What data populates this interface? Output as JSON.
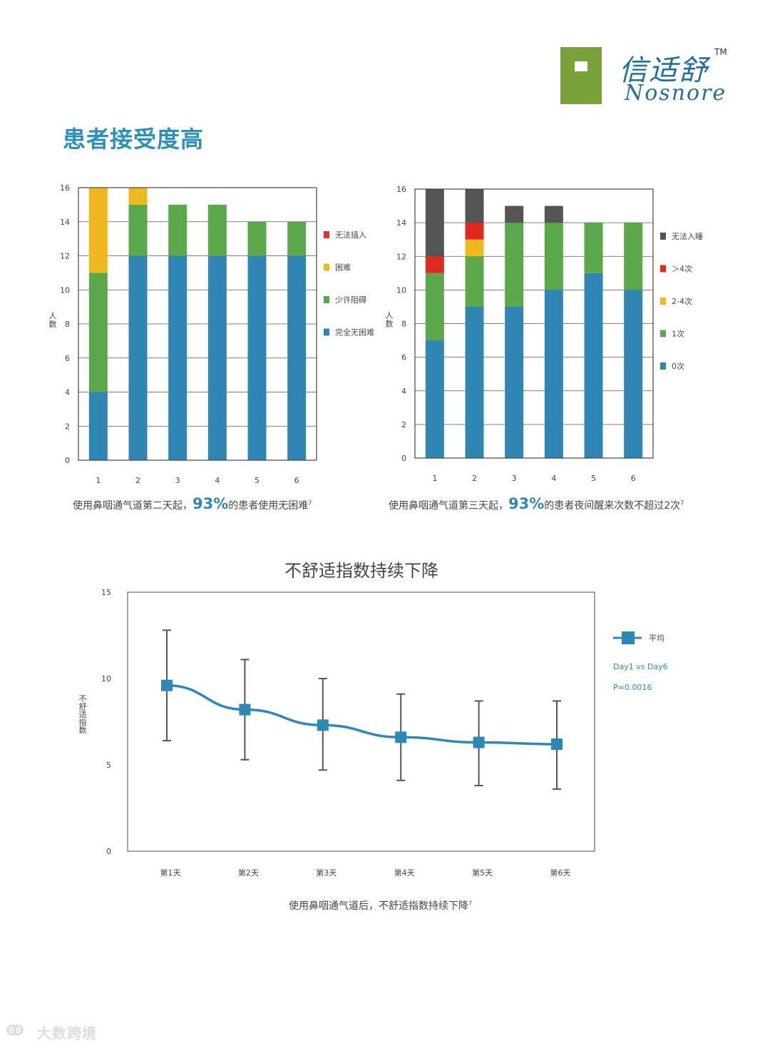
{
  "logo": {
    "name_cn": "信适舒",
    "name_en": "Nosnore",
    "tm": "TM"
  },
  "page_title": "患者接受度高",
  "captions": {
    "left": {
      "pre": "使用鼻咽通气道第二天起，",
      "pct": "93%",
      "post": "的患者使用无困难",
      "ref": "7"
    },
    "right": {
      "pre": "使用鼻咽通气道第三天起，",
      "pct": "93%",
      "post": "的患者夜间醒来次数不超过2次",
      "ref": "7"
    },
    "bottom": {
      "text": "使用鼻咽通气道后，不舒适指数持续下降",
      "ref": "7"
    }
  },
  "chart_data": [
    {
      "type": "bar",
      "stacked": true,
      "categories": [
        "1",
        "2",
        "3",
        "4",
        "5",
        "6"
      ],
      "ylabel": "人数",
      "ylim": [
        0,
        16
      ],
      "yticks": [
        "0",
        "2",
        "4",
        "6",
        "8",
        "10",
        "12",
        "14",
        "16"
      ],
      "grid": true,
      "legend_position": "right",
      "series": [
        {
          "name": "完全无困难",
          "color": "#2f86b5",
          "values": [
            4,
            12,
            12,
            12,
            12,
            12
          ]
        },
        {
          "name": "少许阻碍",
          "color": "#5aa84a",
          "values": [
            7,
            3,
            3,
            3,
            2,
            2
          ]
        },
        {
          "name": "困难",
          "color": "#f0b81f",
          "values": [
            5,
            1,
            0,
            0,
            0,
            0
          ]
        },
        {
          "name": "无法插入",
          "color": "#d9372e",
          "values": [
            0,
            0,
            0,
            0,
            0,
            0
          ]
        }
      ]
    },
    {
      "type": "bar",
      "stacked": true,
      "categories": [
        "1",
        "2",
        "3",
        "4",
        "5",
        "6"
      ],
      "ylabel": "人数",
      "ylim": [
        0,
        16
      ],
      "yticks": [
        "0",
        "2",
        "4",
        "6",
        "8",
        "10",
        "12",
        "14",
        "16"
      ],
      "grid": true,
      "legend_position": "right",
      "series": [
        {
          "name": "0次",
          "color": "#2f86b5",
          "values": [
            7,
            9,
            9,
            10,
            11,
            10
          ]
        },
        {
          "name": "1次",
          "color": "#5aa84a",
          "values": [
            4,
            3,
            5,
            4,
            3,
            4
          ]
        },
        {
          "name": "2-4次",
          "color": "#f0b81f",
          "values": [
            0,
            1,
            0,
            0,
            0,
            0
          ]
        },
        {
          "name": "＞4次",
          "color": "#e02a1f",
          "values": [
            1,
            1,
            0,
            0,
            0,
            0
          ]
        },
        {
          "name": "无法入睡",
          "color": "#555555",
          "values": [
            4,
            2,
            1,
            1,
            0,
            0
          ]
        }
      ]
    },
    {
      "type": "line",
      "title": "不舒适指数持续下降",
      "categories": [
        "第1天",
        "第2天",
        "第3天",
        "第4天",
        "第5天",
        "第6天"
      ],
      "ylabel": "不舒适指数",
      "ylim": [
        0,
        15
      ],
      "yticks": [
        "0",
        "5",
        "10",
        "15"
      ],
      "grid": false,
      "legend_position": "right",
      "series": [
        {
          "name": "平均",
          "color": "#2e88b6",
          "values": [
            9.6,
            8.2,
            7.3,
            6.6,
            6.3,
            6.2
          ],
          "error_low": [
            6.4,
            5.3,
            4.7,
            4.1,
            3.8,
            3.6
          ],
          "error_high": [
            12.8,
            11.1,
            10.0,
            9.1,
            8.7,
            8.7
          ]
        }
      ],
      "annotations": [
        "Day1 vs Day6",
        "P=0.0016"
      ]
    }
  ],
  "watermark": {
    "text": "大数跨境"
  }
}
